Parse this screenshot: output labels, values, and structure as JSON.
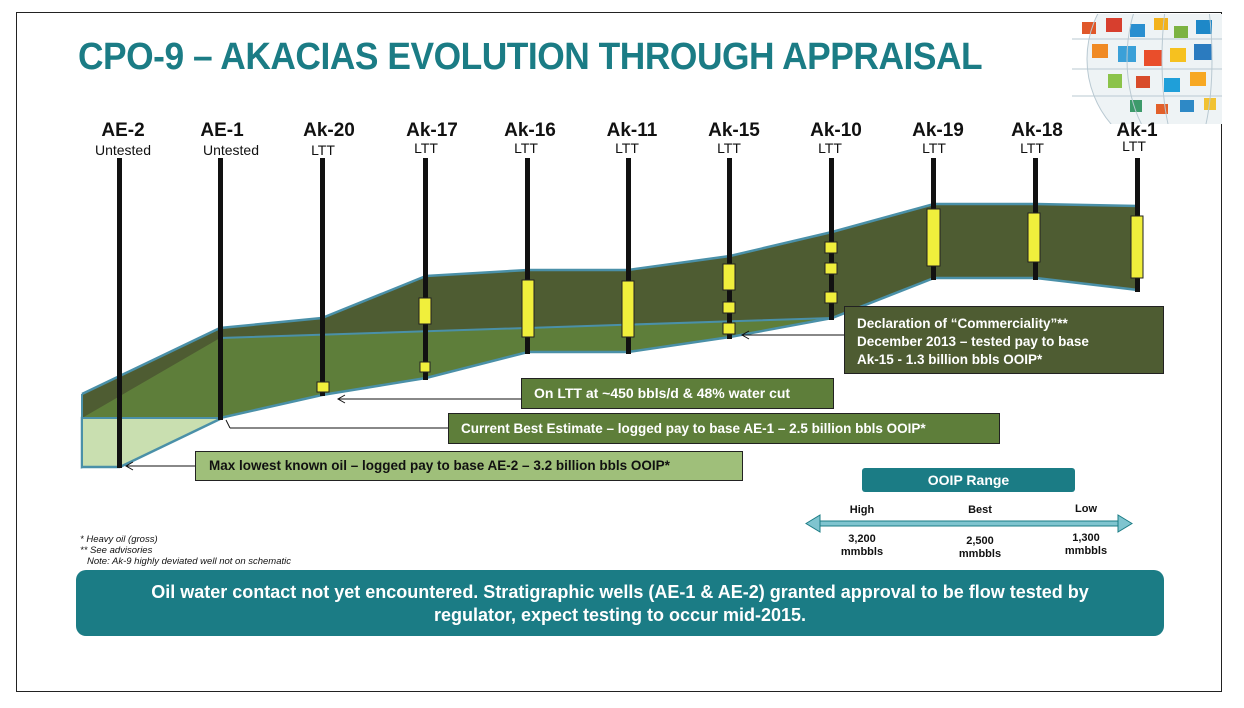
{
  "title": "CPO-9 – AKACIAS EVOLUTION THROUGH APPRAISAL",
  "wells": [
    {
      "name": "AE-2",
      "status": "Untested"
    },
    {
      "name": "AE-1",
      "status": "Untested"
    },
    {
      "name": "Ak-20",
      "status": "LTT"
    },
    {
      "name": "Ak-17",
      "status": "LTT"
    },
    {
      "name": "Ak-16",
      "status": "LTT"
    },
    {
      "name": "Ak-11",
      "status": "LTT"
    },
    {
      "name": "Ak-15",
      "status": "LTT"
    },
    {
      "name": "Ak-10",
      "status": "LTT"
    },
    {
      "name": "Ak-19",
      "status": "LTT"
    },
    {
      "name": "Ak-18",
      "status": "LTT"
    },
    {
      "name": "Ak-1",
      "status": "LTT"
    }
  ],
  "callouts": {
    "ltt": "On LTT at ~450 bbls/d & 48% water cut",
    "current_best": "Current Best Estimate – logged pay to base AE-1 – 2.5 billion bbls OOIP*",
    "max_lko": "Max lowest known oil – logged pay to base AE-2 – 3.2 billion bbls OOIP*",
    "declaration_line1": "Declaration of “Commerciality”**",
    "declaration_line2": "December  2013 – tested pay to base",
    "declaration_line3": "Ak-15 - 1.3 billion bbls OOIP*"
  },
  "ooip_range": {
    "title": "OOIP Range",
    "high_label": "High",
    "best_label": "Best",
    "low_label": "Low",
    "high_value": "3,200",
    "best_value": "2,500",
    "low_value": "1,300",
    "unit": "mmbbls"
  },
  "notes": [
    "* Heavy oil (gross)",
    "** See advisories",
    "Note: Ak-9 highly deviated well not on schematic"
  ],
  "banner": {
    "line1": "Oil water contact not yet encountered.  Stratigraphic wells (AE-1 & AE-2) granted approval to be flow tested by",
    "line2": "regulator, expect testing to occur mid-2015."
  },
  "colors": {
    "teal": "#1b7c85",
    "dark_olive": "#4e5c32",
    "mid_olive": "#5e7e3a",
    "light_green": "#c9dfb0",
    "pay_yellow": "#f0ef3c"
  }
}
